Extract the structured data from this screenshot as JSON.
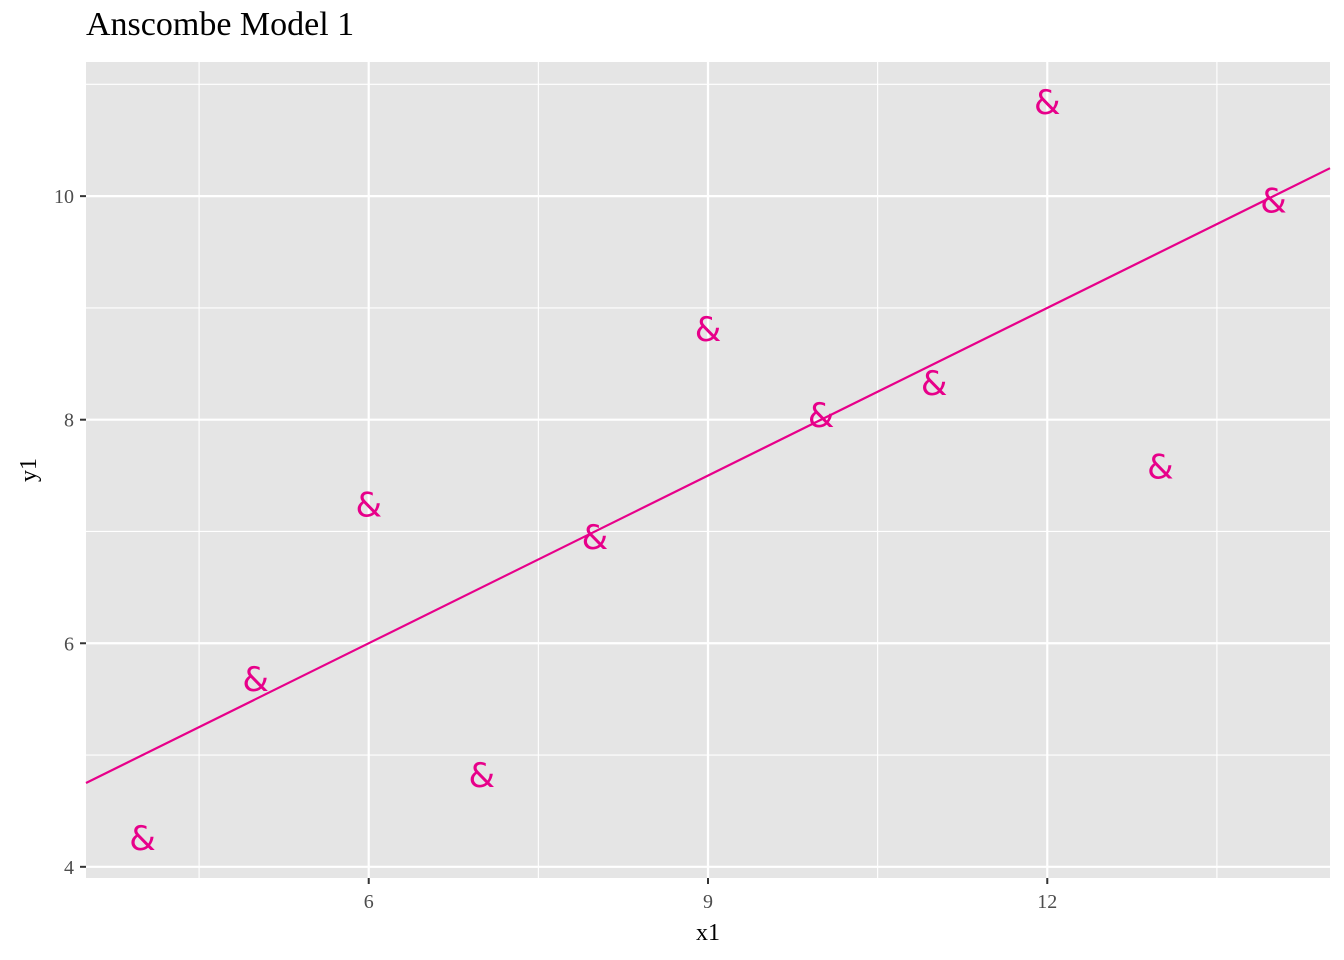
{
  "chart_data": {
    "type": "scatter",
    "title": "Anscombe Model 1",
    "xlabel": "x1",
    "ylabel": "y1",
    "x_ticks": [
      6,
      9,
      12
    ],
    "y_ticks": [
      4,
      6,
      8,
      10
    ],
    "xlim": [
      3.5,
      14.5
    ],
    "ylim": [
      3.9,
      11.2
    ],
    "marker": "&",
    "color": "#e7008a",
    "panel_background": "#e5e5e5",
    "grid": true,
    "series": [
      {
        "x": [
          10,
          8,
          13,
          9,
          11,
          14,
          6,
          4,
          12,
          7,
          5
        ],
        "y": [
          8.04,
          6.95,
          7.58,
          8.81,
          8.33,
          9.96,
          7.24,
          4.26,
          10.84,
          4.82,
          5.68
        ]
      }
    ],
    "fit_line": {
      "intercept": 3.0,
      "slope": 0.5
    }
  }
}
